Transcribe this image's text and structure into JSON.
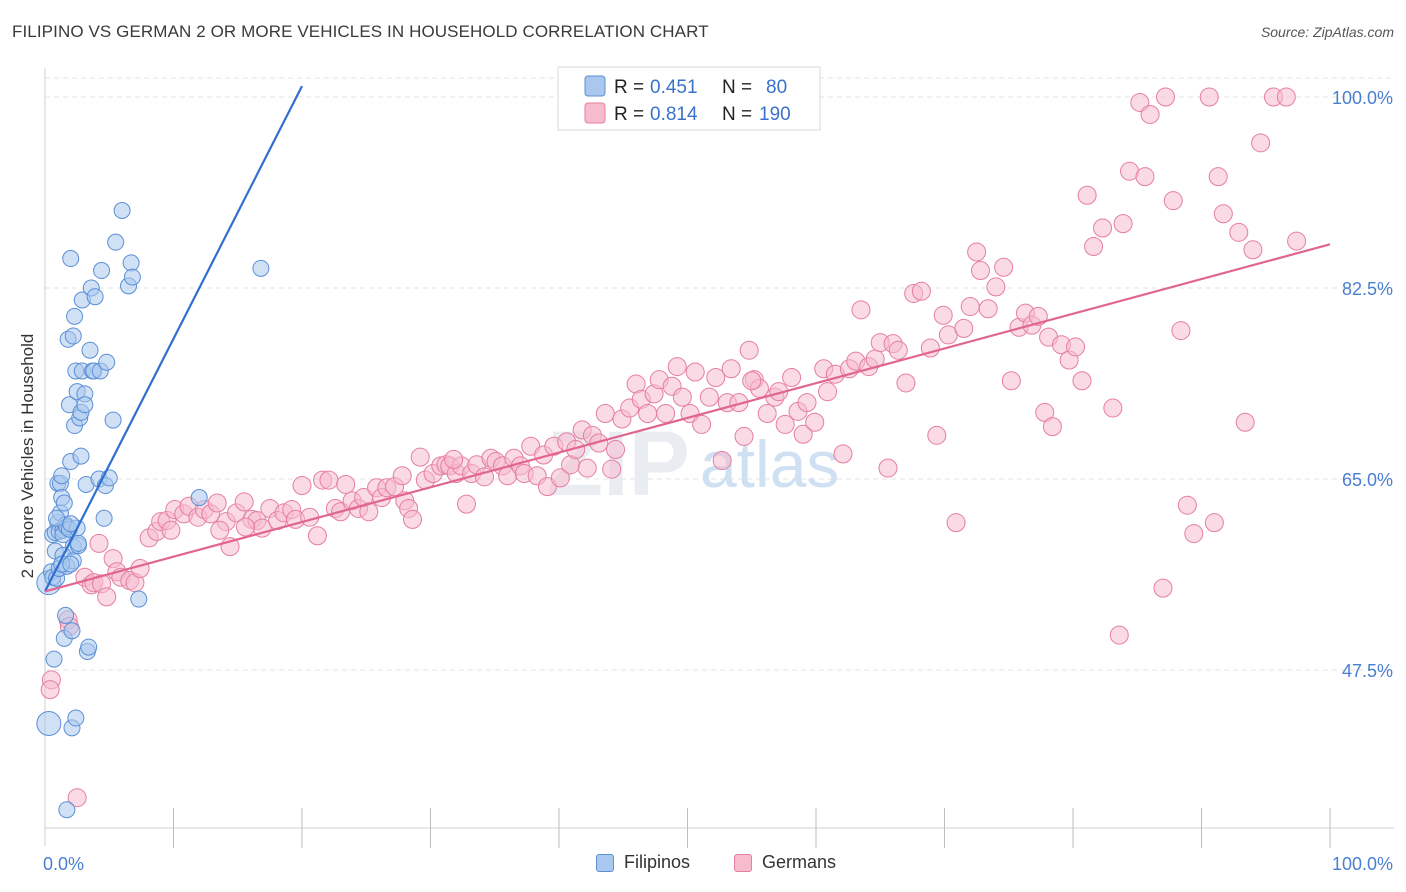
{
  "header": {
    "title": "FILIPINO VS GERMAN 2 OR MORE VEHICLES IN HOUSEHOLD CORRELATION CHART",
    "source": "Source: ZipAtlas.com"
  },
  "watermark": {
    "zip": "ZIP",
    "atlas": "atlas"
  },
  "legend_top": [
    {
      "r_label": "R = ",
      "r_value": "0.451",
      "n_label": "N = ",
      "n_value": "80"
    },
    {
      "r_label": "R = ",
      "r_value": "0.814",
      "n_label": "N = ",
      "n_value": "190"
    }
  ],
  "legend_bottom": [
    "Filipinos",
    "Germans"
  ],
  "colors": {
    "filipinos_fill": "#aac8ee",
    "filipinos_stroke": "#5b8fd6",
    "filipinos_line": "#2f6fcf",
    "germans_fill": "#f6bccd",
    "germans_stroke": "#e67ea1",
    "germans_line": "#e0668f",
    "tick_label": "#4a7fd0",
    "value_text": "#3b72c9"
  },
  "chart_data": {
    "type": "scatter",
    "title": "FILIPINO VS GERMAN 2 OR MORE VEHICLES IN HOUSEHOLD CORRELATION CHART",
    "xlabel": "",
    "ylabel": "2 or more Vehicles in Household",
    "xlim": [
      0,
      100
    ],
    "ylim": [
      30.3,
      100.8
    ],
    "x_tick_labels": [
      "0.0%",
      "100.0%"
    ],
    "y_ticks": [
      47.5,
      65.0,
      82.5,
      100.0
    ],
    "y_tick_labels": [
      "47.5%",
      "65.0%",
      "82.5%",
      "100.0%"
    ],
    "grid": true,
    "legend_position": "top-center",
    "series": [
      {
        "name": "Filipinos",
        "r": 0.451,
        "n": 80,
        "trend": [
          [
            0,
            54.7
          ],
          [
            20,
            101.0
          ]
        ],
        "points": [
          [
            0.3,
            55.5
          ],
          [
            0.3,
            42.6
          ],
          [
            0.5,
            56.5
          ],
          [
            0.6,
            59.9
          ],
          [
            0.6,
            56.0
          ],
          [
            0.7,
            48.5
          ],
          [
            0.8,
            58.4
          ],
          [
            0.8,
            60.1
          ],
          [
            0.9,
            55.9
          ],
          [
            1.0,
            61.0
          ],
          [
            1.0,
            64.6
          ],
          [
            1.1,
            56.8
          ],
          [
            1.1,
            60.2
          ],
          [
            1.2,
            61.9
          ],
          [
            1.2,
            64.6
          ],
          [
            1.3,
            63.3
          ],
          [
            1.3,
            65.3
          ],
          [
            1.4,
            60.3
          ],
          [
            1.4,
            59.9
          ],
          [
            1.5,
            62.8
          ],
          [
            1.5,
            50.4
          ],
          [
            1.6,
            52.5
          ],
          [
            1.6,
            60.8
          ],
          [
            1.7,
            57.0
          ],
          [
            1.7,
            60.6
          ],
          [
            1.8,
            77.8
          ],
          [
            1.9,
            71.8
          ],
          [
            1.9,
            60.4
          ],
          [
            2.0,
            66.6
          ],
          [
            2.0,
            85.2
          ],
          [
            2.1,
            42.2
          ],
          [
            2.1,
            51.1
          ],
          [
            2.2,
            58.8
          ],
          [
            2.2,
            78.1
          ],
          [
            2.3,
            79.9
          ],
          [
            2.3,
            69.9
          ],
          [
            2.4,
            74.9
          ],
          [
            2.4,
            43.1
          ],
          [
            2.5,
            73.0
          ],
          [
            2.5,
            60.5
          ],
          [
            2.6,
            58.9
          ],
          [
            2.6,
            59.1
          ],
          [
            2.7,
            70.6
          ],
          [
            2.8,
            71.1
          ],
          [
            2.8,
            67.1
          ],
          [
            2.9,
            74.9
          ],
          [
            2.9,
            81.4
          ],
          [
            3.1,
            72.8
          ],
          [
            3.1,
            71.8
          ],
          [
            3.2,
            64.5
          ],
          [
            3.3,
            49.2
          ],
          [
            3.4,
            49.6
          ],
          [
            3.5,
            76.8
          ],
          [
            3.6,
            82.5
          ],
          [
            3.7,
            74.9
          ],
          [
            3.8,
            74.9
          ],
          [
            3.9,
            81.7
          ],
          [
            4.2,
            65.0
          ],
          [
            4.3,
            74.9
          ],
          [
            4.4,
            84.1
          ],
          [
            4.6,
            61.4
          ],
          [
            4.7,
            64.4
          ],
          [
            4.8,
            75.7
          ],
          [
            5.0,
            65.1
          ],
          [
            5.3,
            70.4
          ],
          [
            5.5,
            86.7
          ],
          [
            6.0,
            89.6
          ],
          [
            6.5,
            82.7
          ],
          [
            6.7,
            84.8
          ],
          [
            6.8,
            83.5
          ],
          [
            7.3,
            54.0
          ],
          [
            12.0,
            63.3
          ],
          [
            16.8,
            84.3
          ],
          [
            1.4,
            58.0
          ],
          [
            2.2,
            57.5
          ],
          [
            0.9,
            61.4
          ],
          [
            1.3,
            57.2
          ],
          [
            2.0,
            60.9
          ],
          [
            2.0,
            57.2
          ],
          [
            1.7,
            34.7
          ]
        ],
        "point_sizes": {
          "0.3,42.6": 12,
          "0.3,55.5": 12
        }
      },
      {
        "name": "Germans",
        "r": 0.814,
        "n": 190,
        "trend": [
          [
            0,
            54.7
          ],
          [
            100,
            86.5
          ]
        ],
        "points": [
          [
            0.5,
            46.6
          ],
          [
            0.4,
            45.7
          ],
          [
            1.8,
            52.1
          ],
          [
            1.9,
            51.5
          ],
          [
            2.5,
            35.8
          ],
          [
            3.1,
            56.0
          ],
          [
            3.6,
            55.3
          ],
          [
            3.8,
            55.5
          ],
          [
            4.2,
            59.1
          ],
          [
            4.4,
            55.4
          ],
          [
            5.3,
            57.7
          ],
          [
            5.6,
            56.5
          ],
          [
            5.9,
            56.0
          ],
          [
            6.6,
            55.7
          ],
          [
            7.0,
            55.5
          ],
          [
            7.4,
            56.8
          ],
          [
            8.1,
            59.6
          ],
          [
            8.7,
            60.2
          ],
          [
            9.0,
            61.1
          ],
          [
            9.5,
            61.2
          ],
          [
            10.1,
            62.2
          ],
          [
            10.8,
            61.8
          ],
          [
            11.2,
            62.5
          ],
          [
            11.9,
            61.5
          ],
          [
            12.4,
            62.2
          ],
          [
            12.9,
            61.8
          ],
          [
            13.4,
            62.8
          ],
          [
            14.1,
            61.1
          ],
          [
            14.4,
            58.8
          ],
          [
            14.9,
            61.9
          ],
          [
            15.5,
            62.9
          ],
          [
            16.1,
            61.3
          ],
          [
            16.5,
            61.2
          ],
          [
            16.9,
            60.5
          ],
          [
            17.5,
            62.3
          ],
          [
            18.1,
            61.2
          ],
          [
            18.6,
            61.9
          ],
          [
            19.2,
            62.2
          ],
          [
            19.5,
            61.3
          ],
          [
            20.0,
            64.4
          ],
          [
            20.6,
            61.5
          ],
          [
            21.2,
            59.8
          ],
          [
            21.6,
            64.9
          ],
          [
            22.1,
            64.9
          ],
          [
            22.6,
            62.3
          ],
          [
            23.0,
            62.0
          ],
          [
            23.4,
            64.5
          ],
          [
            23.9,
            63.0
          ],
          [
            24.4,
            62.3
          ],
          [
            24.8,
            63.3
          ],
          [
            25.2,
            62.0
          ],
          [
            25.8,
            64.2
          ],
          [
            26.2,
            63.3
          ],
          [
            26.6,
            64.2
          ],
          [
            27.2,
            64.3
          ],
          [
            27.8,
            65.3
          ],
          [
            28.0,
            63.0
          ],
          [
            28.3,
            62.3
          ],
          [
            28.6,
            61.3
          ],
          [
            29.2,
            67.0
          ],
          [
            29.6,
            64.9
          ],
          [
            30.2,
            65.5
          ],
          [
            30.8,
            66.2
          ],
          [
            31.2,
            66.3
          ],
          [
            31.5,
            66.2
          ],
          [
            32.0,
            65.5
          ],
          [
            32.4,
            66.2
          ],
          [
            32.8,
            62.7
          ],
          [
            33.2,
            65.5
          ],
          [
            33.6,
            66.3
          ],
          [
            34.2,
            65.2
          ],
          [
            34.7,
            66.9
          ],
          [
            35.1,
            66.6
          ],
          [
            35.6,
            66.2
          ],
          [
            36.0,
            65.3
          ],
          [
            36.5,
            66.9
          ],
          [
            37.0,
            66.2
          ],
          [
            37.3,
            65.5
          ],
          [
            37.8,
            68.0
          ],
          [
            38.3,
            65.3
          ],
          [
            38.8,
            67.2
          ],
          [
            39.1,
            64.3
          ],
          [
            39.6,
            68.0
          ],
          [
            40.1,
            65.1
          ],
          [
            40.6,
            68.4
          ],
          [
            40.9,
            66.3
          ],
          [
            41.3,
            67.7
          ],
          [
            41.8,
            69.5
          ],
          [
            42.2,
            66.0
          ],
          [
            42.6,
            69.0
          ],
          [
            43.1,
            68.3
          ],
          [
            43.6,
            71.0
          ],
          [
            44.1,
            65.9
          ],
          [
            44.4,
            67.7
          ],
          [
            44.9,
            70.5
          ],
          [
            45.5,
            71.5
          ],
          [
            46.0,
            73.7
          ],
          [
            46.4,
            72.3
          ],
          [
            46.9,
            71.0
          ],
          [
            47.4,
            72.8
          ],
          [
            47.8,
            74.1
          ],
          [
            48.3,
            71.0
          ],
          [
            48.8,
            73.5
          ],
          [
            49.2,
            75.3
          ],
          [
            49.6,
            72.5
          ],
          [
            50.2,
            71.0
          ],
          [
            50.6,
            74.8
          ],
          [
            51.1,
            70.0
          ],
          [
            51.7,
            72.5
          ],
          [
            52.2,
            74.3
          ],
          [
            52.7,
            66.7
          ],
          [
            53.1,
            72.0
          ],
          [
            53.4,
            75.1
          ],
          [
            54.0,
            72.0
          ],
          [
            54.4,
            68.9
          ],
          [
            54.8,
            76.8
          ],
          [
            55.2,
            74.1
          ],
          [
            55.6,
            73.3
          ],
          [
            56.2,
            71.0
          ],
          [
            56.8,
            72.5
          ],
          [
            57.1,
            73.0
          ],
          [
            57.6,
            70.0
          ],
          [
            58.1,
            74.3
          ],
          [
            58.6,
            71.2
          ],
          [
            59.0,
            69.1
          ],
          [
            59.3,
            72.0
          ],
          [
            59.9,
            70.2
          ],
          [
            60.6,
            75.1
          ],
          [
            60.9,
            73.0
          ],
          [
            61.5,
            74.6
          ],
          [
            62.1,
            67.3
          ],
          [
            62.6,
            75.1
          ],
          [
            63.1,
            75.8
          ],
          [
            63.5,
            80.5
          ],
          [
            64.1,
            75.3
          ],
          [
            64.6,
            76.0
          ],
          [
            65.0,
            77.5
          ],
          [
            65.6,
            66.0
          ],
          [
            66.0,
            77.4
          ],
          [
            66.4,
            76.8
          ],
          [
            67.0,
            73.8
          ],
          [
            67.6,
            82.0
          ],
          [
            68.2,
            82.2
          ],
          [
            68.9,
            77.0
          ],
          [
            69.4,
            69.0
          ],
          [
            69.9,
            80.0
          ],
          [
            70.3,
            78.2
          ],
          [
            70.9,
            61.0
          ],
          [
            71.5,
            78.8
          ],
          [
            72.0,
            80.8
          ],
          [
            72.5,
            85.8
          ],
          [
            72.8,
            84.1
          ],
          [
            73.4,
            80.6
          ],
          [
            74.0,
            82.6
          ],
          [
            74.6,
            84.4
          ],
          [
            75.2,
            74.0
          ],
          [
            75.8,
            78.9
          ],
          [
            76.3,
            80.2
          ],
          [
            76.8,
            79.1
          ],
          [
            77.3,
            79.9
          ],
          [
            77.8,
            71.1
          ],
          [
            78.1,
            78.0
          ],
          [
            78.4,
            69.8
          ],
          [
            79.1,
            77.3
          ],
          [
            79.7,
            75.9
          ],
          [
            80.2,
            77.1
          ],
          [
            80.7,
            74.0
          ],
          [
            81.1,
            91.0
          ],
          [
            81.6,
            86.3
          ],
          [
            82.3,
            88.0
          ],
          [
            83.1,
            71.5
          ],
          [
            83.6,
            50.7
          ],
          [
            83.9,
            88.4
          ],
          [
            84.4,
            93.2
          ],
          [
            85.2,
            99.5
          ],
          [
            85.6,
            92.7
          ],
          [
            86.0,
            98.4
          ],
          [
            87.2,
            100.0
          ],
          [
            87.8,
            90.5
          ],
          [
            88.4,
            78.6
          ],
          [
            88.9,
            62.6
          ],
          [
            89.4,
            60.0
          ],
          [
            90.6,
            100.0
          ],
          [
            91.3,
            92.7
          ],
          [
            91.7,
            89.3
          ],
          [
            92.9,
            87.6
          ],
          [
            93.4,
            70.2
          ],
          [
            94.0,
            86.0
          ],
          [
            94.6,
            95.8
          ],
          [
            95.6,
            100.0
          ],
          [
            96.6,
            100.0
          ],
          [
            97.4,
            86.8
          ],
          [
            87.0,
            55.0
          ],
          [
            91.0,
            61.0
          ],
          [
            55.0,
            74.0
          ],
          [
            13.6,
            60.3
          ],
          [
            4.8,
            54.2
          ],
          [
            9.8,
            60.3
          ],
          [
            15.6,
            60.6
          ],
          [
            31.8,
            66.8
          ]
        ]
      }
    ]
  }
}
